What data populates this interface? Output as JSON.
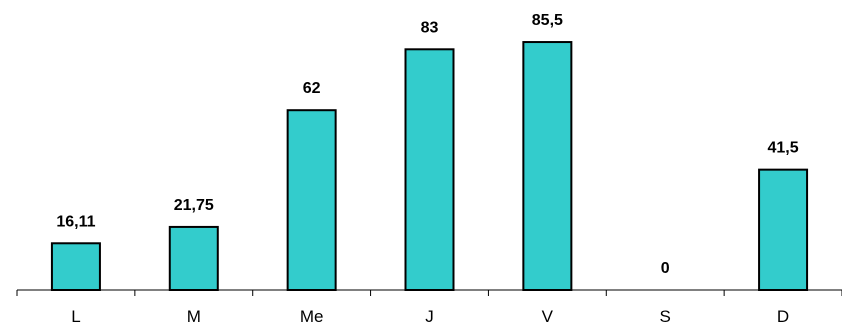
{
  "chart_data": {
    "type": "bar",
    "categories": [
      "L",
      "M",
      "Me",
      "J",
      "V",
      "S",
      "D"
    ],
    "values": [
      16.11,
      21.75,
      62,
      83,
      85.5,
      0,
      41.5
    ],
    "data_labels": [
      "16,11",
      "21,75",
      "62",
      "83",
      "85,5",
      "0",
      "41,5"
    ],
    "title": "",
    "xlabel": "",
    "ylabel": "",
    "ylim": [
      0,
      100
    ],
    "grid": false,
    "colors": {
      "bar_fill": "#33CCCC",
      "bar_stroke": "#000000"
    }
  }
}
